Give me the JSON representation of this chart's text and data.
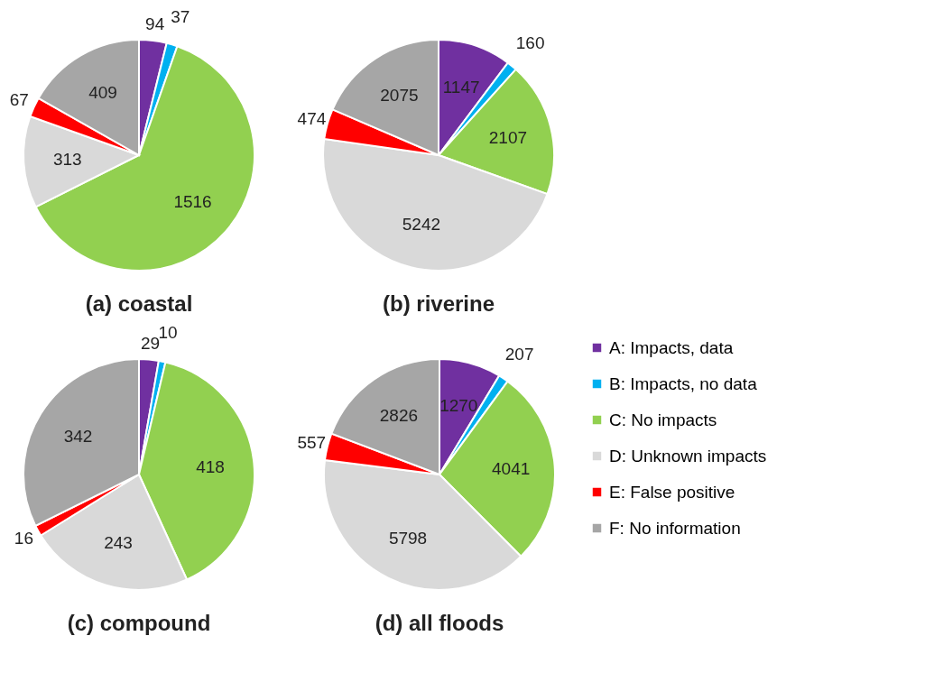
{
  "chart_data": [
    {
      "type": "pie",
      "title": "(a) coastal",
      "categories": [
        null,
        null,
        null,
        null,
        null,
        null
      ],
      "values": [
        94,
        37,
        1516,
        313,
        67,
        409
      ],
      "colors": [
        "#7030a0",
        "#00b0f0",
        "#92d050",
        "#d9d9d9",
        "#ff0000",
        "#a6a6a6"
      ],
      "data_labels": true
    },
    {
      "type": "pie",
      "title": "(b) riverine",
      "categories": [
        null,
        null,
        null,
        null,
        null,
        null
      ],
      "values": [
        1147,
        160,
        2107,
        5242,
        474,
        2075
      ],
      "colors": [
        "#7030a0",
        "#00b0f0",
        "#92d050",
        "#d9d9d9",
        "#ff0000",
        "#a6a6a6"
      ],
      "data_labels": true
    },
    {
      "type": "pie",
      "title": "(c) compound",
      "categories": [
        null,
        null,
        null,
        null,
        null,
        null
      ],
      "values": [
        29,
        10,
        418,
        243,
        16,
        342
      ],
      "colors": [
        "#7030a0",
        "#00b0f0",
        "#92d050",
        "#d9d9d9",
        "#ff0000",
        "#a6a6a6"
      ],
      "data_labels": true
    },
    {
      "type": "pie",
      "title": "(d) all floods",
      "categories": [
        "A: Impacts, data",
        "B: Impacts, no data",
        "C: No impacts",
        "D: Unknown impacts",
        "E: False positive",
        "F: No information"
      ],
      "values": [
        1270,
        207,
        4041,
        5798,
        557,
        2826
      ],
      "colors": [
        "#7030a0",
        "#00b0f0",
        "#92d050",
        "#d9d9d9",
        "#ff0000",
        "#a6a6a6"
      ],
      "data_labels": true,
      "legend": "right"
    }
  ]
}
